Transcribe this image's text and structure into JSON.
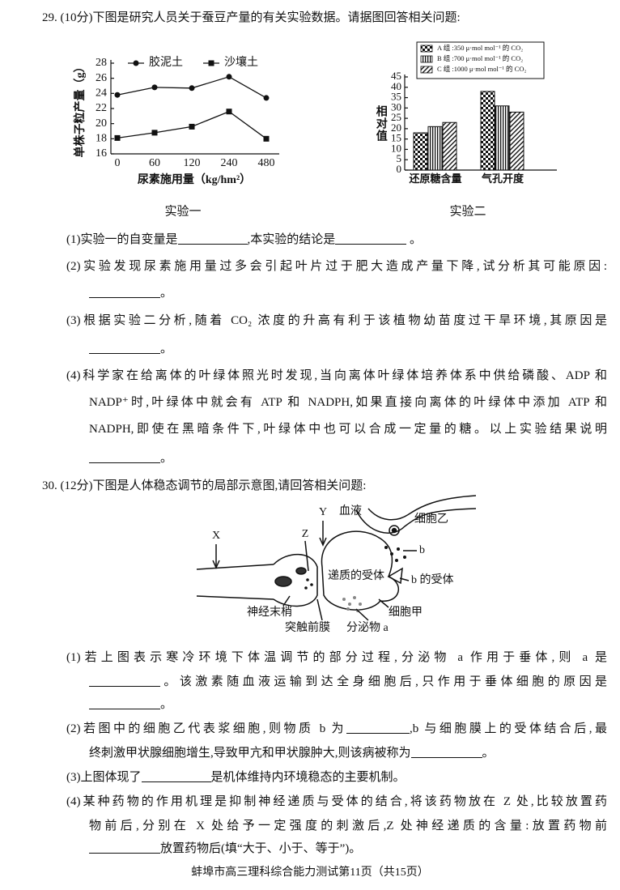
{
  "q29": {
    "header": "29. (10分)下图是研究人员关于蚕豆产量的有关实验数据。请据图回答相关问题:",
    "items": [
      {
        "lines": [
          [
            "(1)实验一的自变量是",
            ",本实验的结论是",
            " 。"
          ]
        ]
      },
      {
        "lines": [
          [
            "(2)实验发现尿素施用量过多会引起叶片过于肥大造成产量下降,试分析其可能原因:"
          ],
          [
            "。"
          ]
        ]
      },
      {
        "lines": [
          [
            "(3)根据实验二分析,随着 CO₂ 浓度的升高有利于该植物幼苗度过干旱环境,其原因是"
          ],
          [
            "。"
          ]
        ]
      },
      {
        "lines": [
          [
            "(4)科学家在给离体的叶绿体照光时发现,当向离体叶绿体培养体系中供给磷酸、ADP 和"
          ],
          [
            "NADP⁺时,叶绿体中就会有 ATP 和 NADPH,如果直接向离体的叶绿体中添加 ATP 和"
          ],
          [
            "NADPH,即使在黑暗条件下,叶绿体中也可以合成一定量的糖。以上实验结果说明"
          ],
          [
            "。"
          ]
        ]
      }
    ]
  },
  "chart_data": [
    {
      "type": "line",
      "caption": "实验一",
      "ylabel": "单株子粒产量（g）",
      "xlabel": "尿素施用量（kg/hm²）",
      "categories": [
        "0",
        "60",
        "120",
        "240",
        "480"
      ],
      "series": [
        {
          "name": "胶泥土",
          "color": "#111111",
          "marker": "circle",
          "values": [
            23.8,
            24.8,
            24.7,
            26.2,
            23.4
          ]
        },
        {
          "name": "沙壤土",
          "color": "#111111",
          "marker": "square",
          "values": [
            18.1,
            18.8,
            19.6,
            21.6,
            18.0
          ]
        }
      ],
      "ylim": [
        16,
        28
      ],
      "yticks": [
        16,
        18,
        20,
        22,
        24,
        26,
        28
      ]
    },
    {
      "type": "bar",
      "caption": "实验二",
      "ylabel": "相对值",
      "categories": [
        "还原糖含量",
        "气孔开度"
      ],
      "series": [
        {
          "name": "A 组 :350 μ·mol mol⁻¹ 的 CO₂",
          "pattern": "checker",
          "values": [
            18,
            38
          ]
        },
        {
          "name": "B 组 :700 μ·mol mol⁻¹ 的 CO₂",
          "pattern": "vertical",
          "values": [
            21,
            31
          ]
        },
        {
          "name": "C 组 :1000 μ·mol mol⁻¹ 的 CO₂",
          "pattern": "diagonal",
          "values": [
            23,
            28
          ]
        }
      ],
      "ylim": [
        0,
        45
      ],
      "yticks": [
        0,
        5,
        10,
        15,
        20,
        25,
        30,
        35,
        40,
        45
      ]
    }
  ],
  "q30": {
    "header": "30. (12分)下图是人体稳态调节的局部示意图,请回答相关问题:",
    "diagram": {
      "labels": [
        "X",
        "Y",
        "Z",
        "血液",
        "细胞乙",
        "b",
        "递质的受体",
        "b 的受体",
        "神经末梢",
        "细胞甲",
        "突触前膜",
        "分泌物 a"
      ]
    },
    "items": [
      {
        "lines": [
          [
            "(1)若上图表示寒冷环境下体温调节的部分过程,分泌物 a 作用于垂体,则 a 是"
          ],
          [
            "。该激素随血液运输到达全身细胞后,只作用于垂体细胞的原因是"
          ],
          [
            "。"
          ]
        ]
      },
      {
        "lines": [
          [
            "(2)若图中的细胞乙代表浆细胞,则物质 b 为",
            ",b 与细胞膜上的受体结合后,最"
          ],
          [
            "终刺激甲状腺细胞增生,导致甲亢和甲状腺肿大,则该病被称为",
            "。"
          ]
        ]
      },
      {
        "lines": [
          [
            "(3)上图体现了",
            "是机体维持内环境稳态的主要机制。"
          ]
        ]
      },
      {
        "lines": [
          [
            "(4)某种药物的作用机理是抑制神经递质与受体的结合,将该药物放在 Z 处,比较放置药"
          ],
          [
            "物前后,分别在 X 处给予一定强度的刺激后,Z 处神经递质的含量:放置药物前"
          ],
          [
            "放置药物后(填“大于、小于、等于”)。"
          ]
        ]
      }
    ]
  },
  "footer": "蚌埠市高三理科综合能力测试第11页（共15页）"
}
